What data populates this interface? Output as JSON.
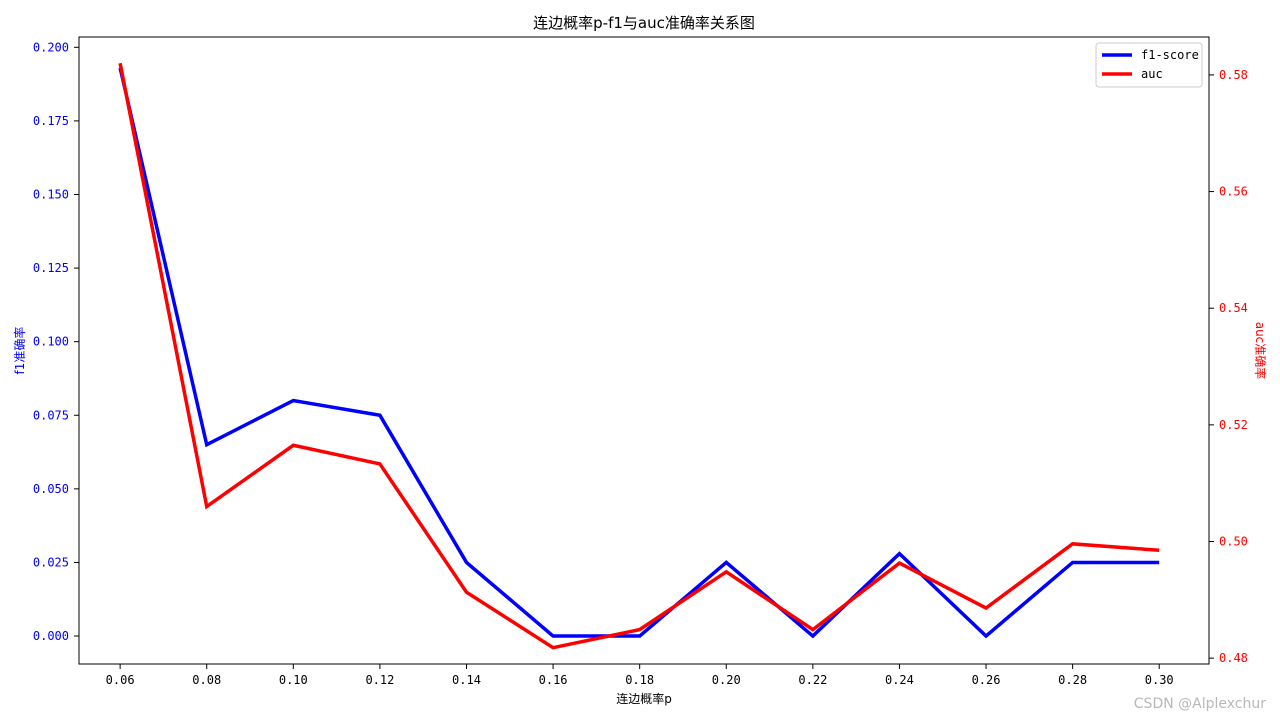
{
  "chart_data": {
    "type": "line",
    "title": "连边概率p-f1与auc准确率关系图",
    "xlabel": "连边概率p",
    "ylabel_left": "f1准确率",
    "ylabel_right": "auc准确率",
    "x": [
      0.06,
      0.08,
      0.1,
      0.12,
      0.14,
      0.16,
      0.18,
      0.2,
      0.22,
      0.24,
      0.26,
      0.28,
      0.3
    ],
    "x_tick_labels": [
      "0.06",
      "0.08",
      "0.10",
      "0.12",
      "0.14",
      "0.16",
      "0.18",
      "0.20",
      "0.22",
      "0.24",
      "0.26",
      "0.28",
      "0.30"
    ],
    "xlim": [
      0.0505,
      0.3115
    ],
    "ylim_left": [
      -0.0095,
      0.2035
    ],
    "ylim_right": [
      0.479,
      0.5865
    ],
    "y_left_ticks": [
      "0.000",
      "0.025",
      "0.050",
      "0.075",
      "0.100",
      "0.125",
      "0.150",
      "0.175",
      "0.200"
    ],
    "y_right_ticks": [
      "0.48",
      "0.50",
      "0.52",
      "0.54",
      "0.56",
      "0.58"
    ],
    "series": [
      {
        "name": "f1-score",
        "axis": "left",
        "color": "#0000ff",
        "values": [
          0.193,
          0.065,
          0.08,
          0.075,
          0.025,
          0.0,
          0.0,
          0.025,
          0.0,
          0.028,
          0.0,
          0.025,
          0.025
        ]
      },
      {
        "name": "auc",
        "axis": "right",
        "color": "#ff0000",
        "values": [
          0.582,
          0.506,
          0.5165,
          0.5133,
          0.4913,
          0.4818,
          0.4849,
          0.4948,
          0.4849,
          0.4963,
          0.4886,
          0.4996,
          0.4985
        ]
      }
    ],
    "legend_position": "top-right",
    "grid": false
  },
  "watermark": "CSDN @Alplexchur"
}
